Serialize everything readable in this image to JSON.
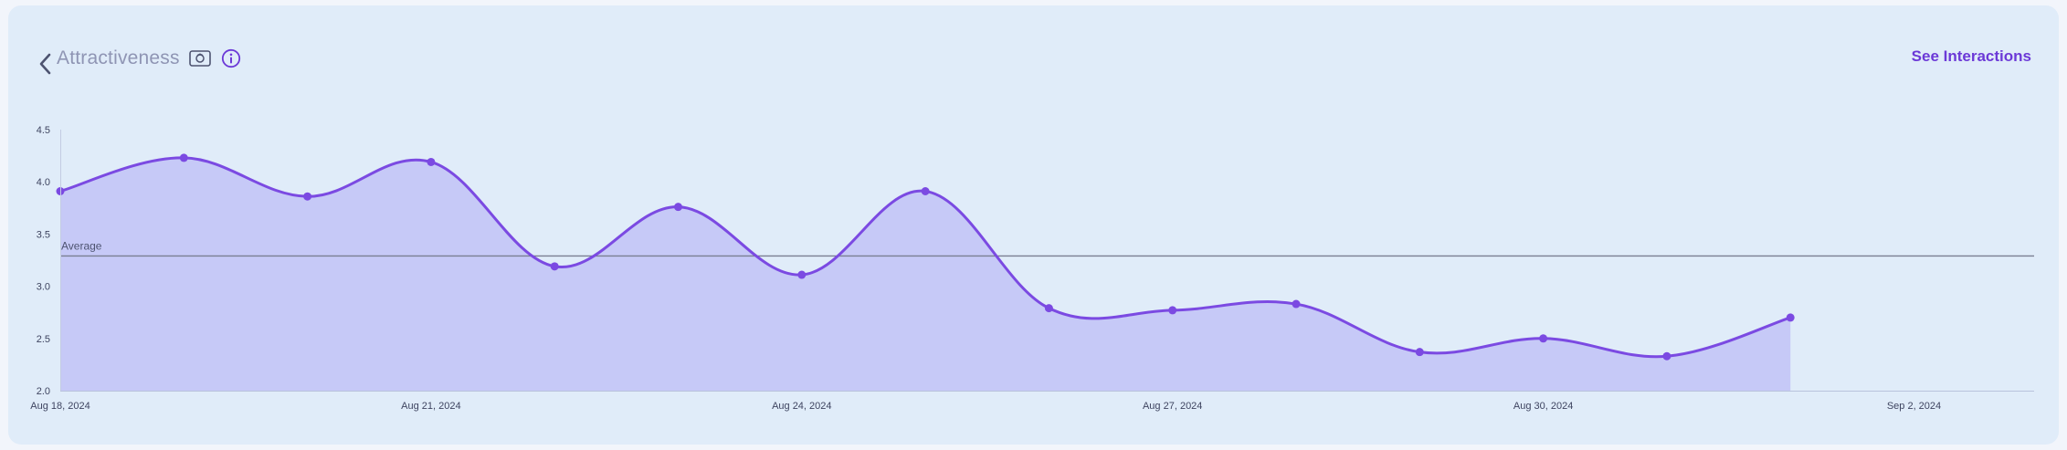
{
  "header": {
    "title": "Attractiveness",
    "see_interactions": "See Interactions"
  },
  "icons": {
    "back": "chevron-left-icon",
    "camera": "camera-icon",
    "info": "info-icon"
  },
  "colors": {
    "line": "#7b4ae2",
    "fill": "#c6c9f7",
    "average_line": "#7a7f92",
    "accent": "#6c39d7"
  },
  "chart_data": {
    "type": "area",
    "x": [
      "Aug 18, 2024",
      "Aug 19, 2024",
      "Aug 20, 2024",
      "Aug 21, 2024",
      "Aug 22, 2024",
      "Aug 23, 2024",
      "Aug 24, 2024",
      "Aug 25, 2024",
      "Aug 26, 2024",
      "Aug 27, 2024",
      "Aug 28, 2024",
      "Aug 29, 2024",
      "Aug 30, 2024",
      "Aug 31, 2024",
      "Sep 1, 2024"
    ],
    "values": [
      3.91,
      4.23,
      3.86,
      4.19,
      3.19,
      3.76,
      3.11,
      3.91,
      2.79,
      2.77,
      2.83,
      2.37,
      2.5,
      2.33,
      2.7
    ],
    "xaxis_ticks": [
      "Aug 18, 2024",
      "Aug 21, 2024",
      "Aug 24, 2024",
      "Aug 27, 2024",
      "Aug 30, 2024",
      "Sep 2, 2024"
    ],
    "ylim": [
      2.0,
      4.5
    ],
    "yticks": [
      "2.0",
      "2.5",
      "3.0",
      "3.5",
      "4.0",
      "4.5"
    ],
    "average": {
      "label": "Average",
      "value": 3.29
    },
    "grid": false,
    "legend": "none"
  }
}
